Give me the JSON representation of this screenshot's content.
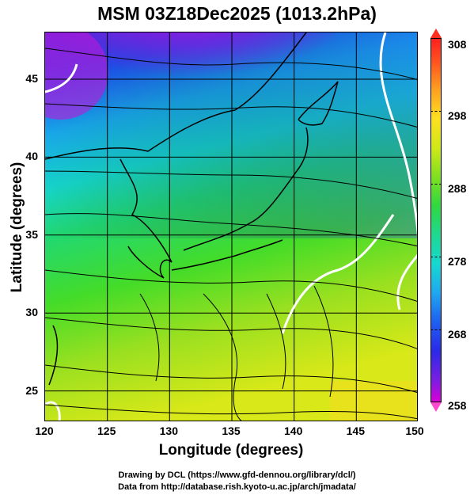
{
  "title": "MSM 03Z18Dec2025 (1013.2hPa)",
  "x_axis": {
    "label": "Longitude (degrees)",
    "range": [
      120,
      150
    ],
    "ticks": [
      "120",
      "125",
      "130",
      "135",
      "140",
      "145",
      "150"
    ]
  },
  "y_axis": {
    "label": "Latitude  (degrees)",
    "range": [
      22.5,
      47.5
    ],
    "ticks": [
      "25",
      "30",
      "35",
      "40",
      "45"
    ]
  },
  "colorbar": {
    "min": 258,
    "max": 308,
    "labels": [
      "308",
      "298",
      "288",
      "278",
      "268",
      "258"
    ],
    "colors": [
      "#ff2020",
      "#ffe020",
      "#30d840",
      "#16d8d0",
      "#2a2ae8",
      "#d800d8"
    ]
  },
  "footer": {
    "line1": "Drawing by DCL (https://www.gfd-dennou.org/library/dcl/)",
    "line2": "Data from http://database.rish.kyoto-u.ac.jp/arch/jmadata/"
  },
  "map_data": {
    "field": "temperature (K) with surface wind streamlines",
    "grid_step_deg": 5
  }
}
